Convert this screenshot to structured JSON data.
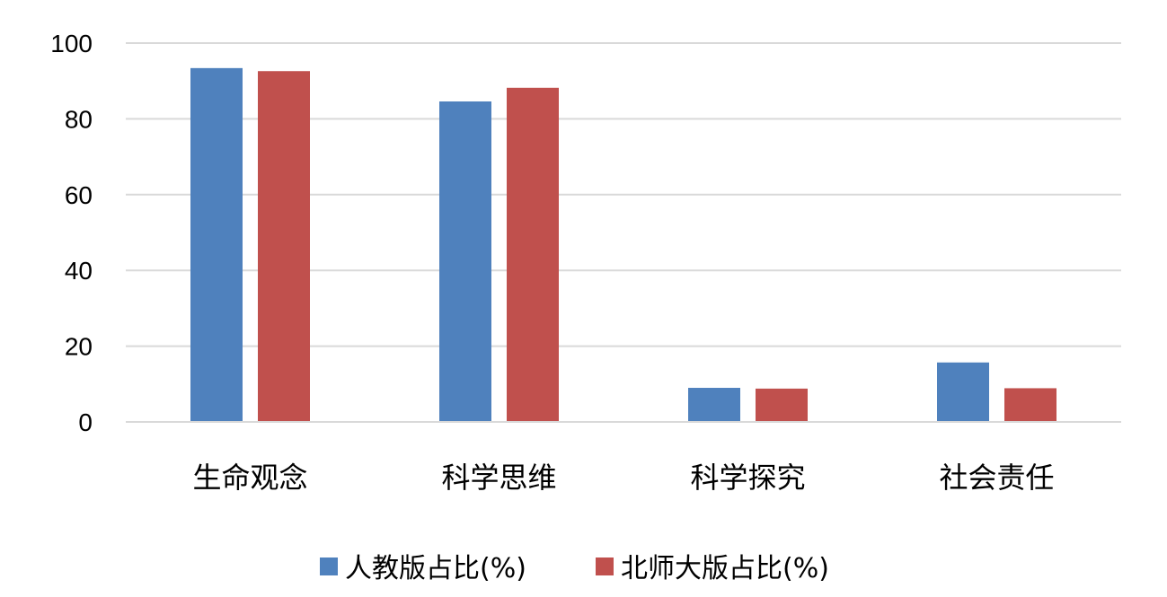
{
  "chart_data": {
    "type": "bar",
    "title": "",
    "xlabel": "",
    "ylabel": "",
    "categories": [
      "生命观念",
      "科学思维",
      "科学探究",
      "社会责任"
    ],
    "series": [
      {
        "name": "人教版占比(%)",
        "color": "#4f81bd",
        "values": [
          93.4,
          84.6,
          9.0,
          15.7
        ]
      },
      {
        "name": "北师大版占比(%)",
        "color": "#c0504d",
        "values": [
          92.6,
          88.2,
          8.8,
          8.9
        ]
      }
    ],
    "ylim": [
      0,
      100
    ],
    "yticks": [
      0,
      20,
      40,
      60,
      80,
      100
    ],
    "grid": true,
    "legend_position": "bottom"
  }
}
